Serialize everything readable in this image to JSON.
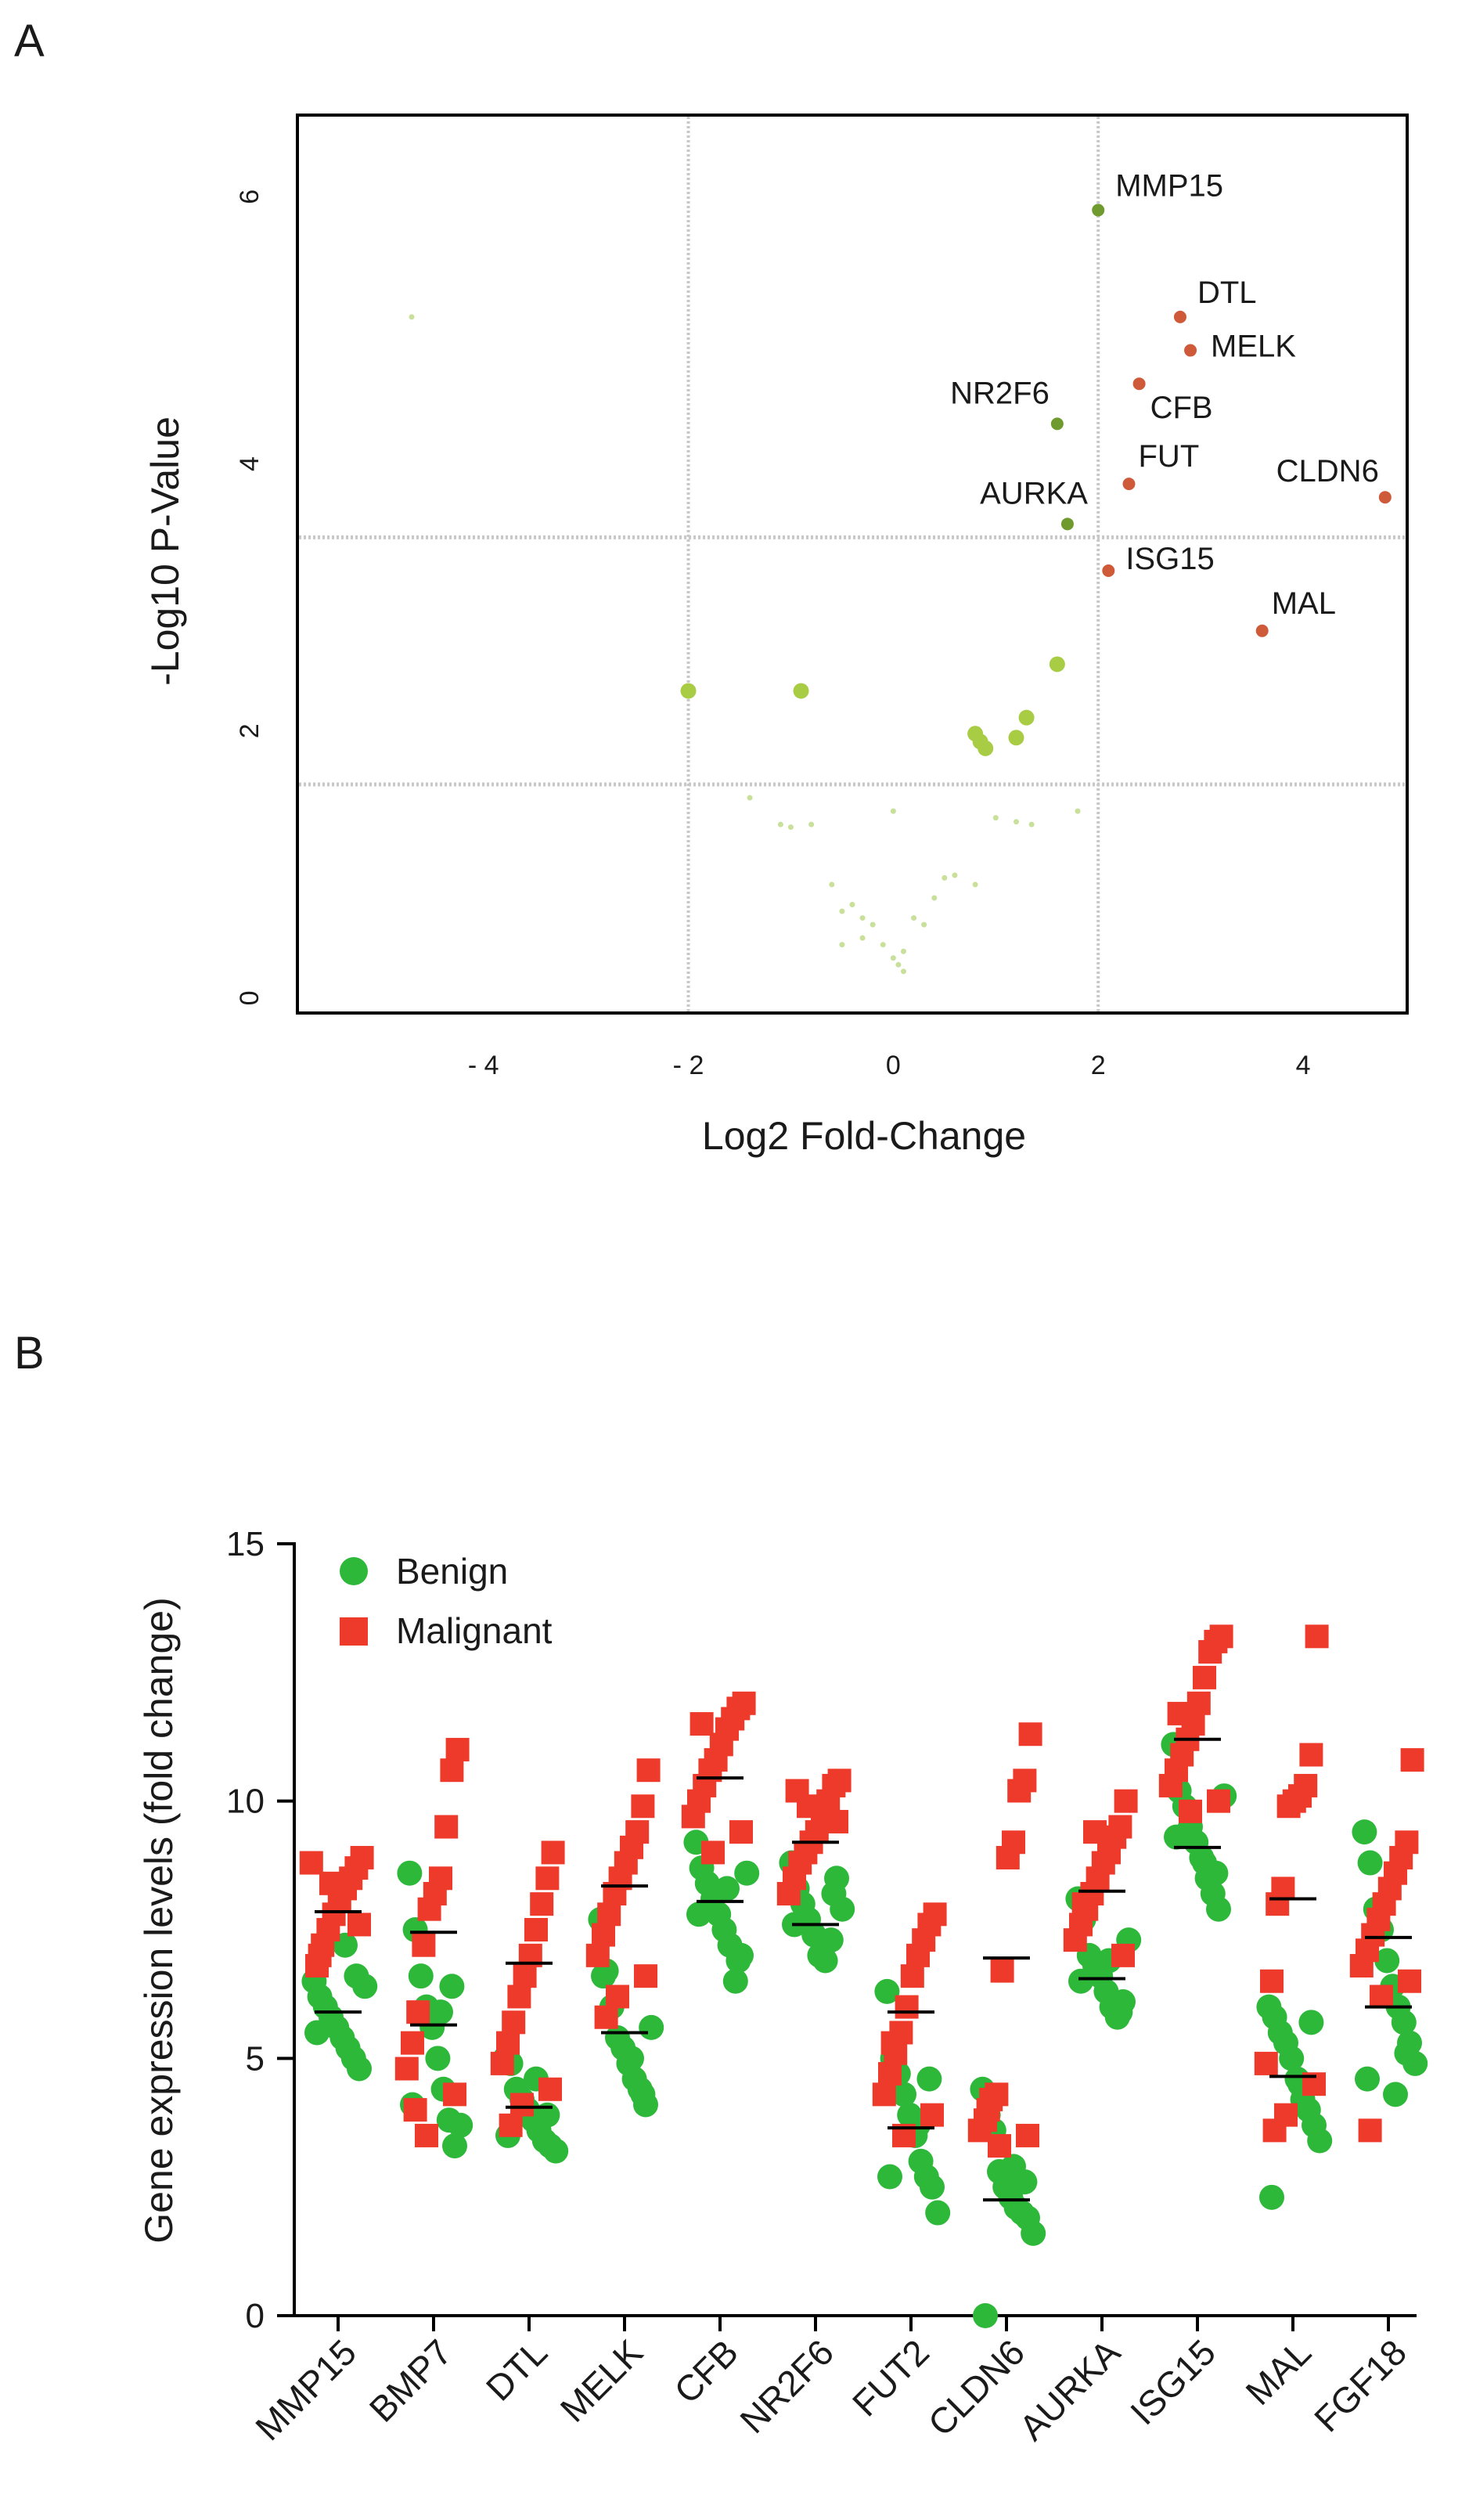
{
  "panel_labels": [
    "A",
    "B"
  ],
  "chart_data": [
    {
      "type": "scatter",
      "subtype": "volcano",
      "title": "",
      "xlabel": "Log2 Fold-Change",
      "ylabel": "-Log10 P-Value",
      "xlim": [
        -5.8,
        5.0
      ],
      "ylim": [
        -0.1,
        6.6
      ],
      "x_ticks": [
        -4,
        -2,
        0,
        2,
        4
      ],
      "x_tick_labels": [
        "- 4",
        "- 2",
        "0",
        "2",
        "4"
      ],
      "y_ticks": [
        0,
        2,
        4,
        6
      ],
      "y_tick_labels": [
        "0",
        "2",
        "4",
        "6"
      ],
      "grid_lines": {
        "x": [
          -2,
          2
        ],
        "y": [
          1.6,
          3.45
        ]
      },
      "colors": {
        "significant": "#cf5a3a",
        "moderate": "#6e9a2e",
        "light": "#a8cc44",
        "faint": "#c8e09a",
        "grid": "#c8c8c8"
      },
      "labeled_points": [
        {
          "gene": "MMP15",
          "x": 2.0,
          "y": 5.9,
          "group": "moderate"
        },
        {
          "gene": "DTL",
          "x": 2.8,
          "y": 5.1,
          "group": "significant"
        },
        {
          "gene": "MELK",
          "x": 2.9,
          "y": 4.85,
          "group": "significant"
        },
        {
          "gene": "CFB",
          "x": 2.4,
          "y": 4.6,
          "group": "significant"
        },
        {
          "gene": "NR2F6",
          "x": 1.6,
          "y": 4.3,
          "group": "moderate"
        },
        {
          "gene": "FUT",
          "x": 2.3,
          "y": 3.85,
          "group": "significant"
        },
        {
          "gene": "CLDN6",
          "x": 4.8,
          "y": 3.75,
          "group": "significant"
        },
        {
          "gene": "AURKA",
          "x": 1.7,
          "y": 3.55,
          "group": "moderate"
        },
        {
          "gene": "ISG15",
          "x": 2.1,
          "y": 3.2,
          "group": "significant"
        },
        {
          "gene": "MAL",
          "x": 3.6,
          "y": 2.75,
          "group": "significant"
        }
      ],
      "other_points": [
        {
          "x": -2.0,
          "y": 2.3,
          "group": "light"
        },
        {
          "x": -0.9,
          "y": 2.3,
          "group": "light"
        },
        {
          "x": 1.6,
          "y": 2.5,
          "group": "light"
        },
        {
          "x": 1.3,
          "y": 2.1,
          "group": "light"
        },
        {
          "x": 1.2,
          "y": 1.95,
          "group": "light"
        },
        {
          "x": 0.8,
          "y": 1.98,
          "group": "light"
        },
        {
          "x": 0.85,
          "y": 1.92,
          "group": "light"
        },
        {
          "x": 0.9,
          "y": 1.87,
          "group": "light"
        },
        {
          "x": -4.7,
          "y": 5.1,
          "group": "faint"
        },
        {
          "x": -1.4,
          "y": 1.5,
          "group": "faint"
        },
        {
          "x": -1.1,
          "y": 1.3,
          "group": "faint"
        },
        {
          "x": -1.0,
          "y": 1.28,
          "group": "faint"
        },
        {
          "x": -0.8,
          "y": 1.3,
          "group": "faint"
        },
        {
          "x": 0.0,
          "y": 1.4,
          "group": "faint"
        },
        {
          "x": 1.0,
          "y": 1.35,
          "group": "faint"
        },
        {
          "x": 1.2,
          "y": 1.32,
          "group": "faint"
        },
        {
          "x": 1.35,
          "y": 1.3,
          "group": "faint"
        },
        {
          "x": 1.8,
          "y": 1.4,
          "group": "faint"
        },
        {
          "x": -0.6,
          "y": 0.85,
          "group": "faint"
        },
        {
          "x": -0.5,
          "y": 0.65,
          "group": "faint"
        },
        {
          "x": -0.3,
          "y": 0.6,
          "group": "faint"
        },
        {
          "x": -0.2,
          "y": 0.55,
          "group": "faint"
        },
        {
          "x": -0.1,
          "y": 0.4,
          "group": "faint"
        },
        {
          "x": 0.0,
          "y": 0.3,
          "group": "faint"
        },
        {
          "x": 0.05,
          "y": 0.25,
          "group": "faint"
        },
        {
          "x": 0.1,
          "y": 0.35,
          "group": "faint"
        },
        {
          "x": -0.4,
          "y": 0.7,
          "group": "faint"
        },
        {
          "x": -0.3,
          "y": 0.45,
          "group": "faint"
        },
        {
          "x": 0.2,
          "y": 0.6,
          "group": "faint"
        },
        {
          "x": 0.3,
          "y": 0.55,
          "group": "faint"
        },
        {
          "x": 0.5,
          "y": 0.9,
          "group": "faint"
        },
        {
          "x": 0.6,
          "y": 0.92,
          "group": "faint"
        },
        {
          "x": 0.4,
          "y": 0.75,
          "group": "faint"
        },
        {
          "x": 0.8,
          "y": 0.85,
          "group": "faint"
        },
        {
          "x": -0.5,
          "y": 0.4,
          "group": "faint"
        },
        {
          "x": 0.1,
          "y": 0.2,
          "group": "faint"
        }
      ]
    },
    {
      "type": "scatter",
      "subtype": "dot-plot",
      "title": "",
      "xlabel": "",
      "ylabel": "Gene expression levels (fold change)",
      "ylim": [
        0,
        15
      ],
      "y_ticks": [
        0,
        5,
        10,
        15
      ],
      "y_tick_labels": [
        "0",
        "5",
        "10",
        "15"
      ],
      "categories": [
        "MMP15",
        "BMP7",
        "DTL",
        "MELK",
        "CFB",
        "NR2F6",
        "FUT2",
        "CLDN6",
        "AURKA",
        "ISG15",
        "MAL",
        "FGF18"
      ],
      "legend": {
        "position": "top-left",
        "entries": [
          "Benign",
          "Malignant"
        ]
      },
      "colors": {
        "Benign": "#2db83a",
        "Malignant": "#ee3a2a",
        "mean_line": "#000000"
      },
      "series": [
        {
          "name": "Benign",
          "means": [
            5.9,
            5.65,
            4.05,
            5.5,
            8.05,
            7.6,
            3.65,
            2.25,
            6.55,
            9.1,
            4.65,
            6.0
          ],
          "values": [
            [
              6.5,
              6.2,
              6.0,
              5.8,
              5.6,
              5.4,
              5.2,
              5.0,
              4.8,
              6.4,
              5.5,
              7.2,
              6.6
            ],
            [
              8.6,
              7.5,
              6.6,
              6.0,
              5.6,
              5.0,
              4.4,
              3.8,
              3.3,
              3.7,
              4.1,
              5.9,
              6.4
            ],
            [
              5.0,
              4.9,
              4.4,
              4.2,
              4.0,
              3.8,
              3.6,
              3.4,
              3.3,
              3.2,
              3.5,
              4.6,
              3.9
            ],
            [
              7.7,
              6.7,
              6.0,
              5.4,
              5.2,
              4.9,
              4.6,
              4.4,
              4.1,
              5.6,
              6.6,
              5.0,
              4.3
            ],
            [
              9.2,
              8.7,
              8.4,
              8.1,
              7.8,
              7.5,
              7.2,
              6.5,
              7.0,
              8.6,
              7.8,
              8.3,
              6.9
            ],
            [
              8.8,
              8.3,
              8.0,
              7.7,
              7.4,
              7.0,
              6.9,
              7.3,
              8.5,
              7.9,
              7.6,
              7.1,
              8.2
            ],
            [
              6.3,
              5.0,
              4.7,
              4.3,
              3.9,
              3.5,
              3.0,
              2.7,
              2.5,
              2.0,
              2.7,
              3.7,
              4.6
            ],
            [
              4.4,
              3.9,
              3.6,
              2.8,
              2.5,
              2.3,
              2.1,
              2.0,
              1.9,
              1.6,
              0.0,
              2.9,
              2.6
            ],
            [
              8.1,
              7.7,
              7.0,
              6.8,
              6.6,
              6.3,
              6.0,
              5.8,
              6.1,
              7.3,
              6.5,
              6.9,
              5.9
            ],
            [
              11.1,
              10.2,
              9.9,
              9.5,
              9.2,
              8.9,
              8.5,
              8.2,
              7.9,
              10.1,
              9.3,
              8.8,
              8.6
            ],
            [
              6.0,
              5.8,
              5.5,
              5.3,
              5.0,
              4.6,
              4.2,
              4.0,
              3.7,
              3.4,
              2.3,
              4.5,
              5.7
            ],
            [
              9.4,
              8.8,
              7.9,
              7.5,
              6.9,
              6.4,
              6.0,
              5.7,
              5.3,
              4.9,
              4.6,
              4.3,
              5.1
            ]
          ]
        },
        {
          "name": "Malignant",
          "means": [
            7.85,
            7.45,
            6.85,
            8.35,
            10.45,
            9.2,
            5.9,
            6.95,
            8.25,
            11.2,
            8.1,
            7.35
          ],
          "values": [
            [
              8.9,
              8.7,
              8.5,
              8.3,
              8.1,
              7.8,
              7.5,
              7.2,
              6.8,
              8.8,
              7.6,
              8.4,
              7.0
            ],
            [
              11.0,
              10.6,
              9.5,
              8.5,
              8.2,
              7.9,
              7.2,
              5.9,
              5.3,
              4.8,
              4.3,
              3.5,
              4.0
            ],
            [
              9.0,
              8.5,
              8.0,
              7.5,
              7.0,
              6.6,
              6.2,
              5.7,
              5.3,
              4.9,
              4.4,
              4.1,
              3.7
            ],
            [
              10.6,
              9.9,
              9.4,
              9.1,
              8.8,
              8.5,
              8.2,
              7.8,
              7.4,
              7.0,
              6.6,
              6.2,
              5.8
            ],
            [
              11.9,
              11.8,
              11.6,
              11.4,
              11.1,
              10.8,
              10.6,
              10.3,
              10.0,
              9.7,
              9.4,
              9.0,
              11.5
            ],
            [
              10.4,
              10.3,
              10.0,
              9.7,
              9.4,
              9.2,
              9.0,
              8.8,
              8.5,
              8.2,
              9.6,
              9.9,
              10.2
            ],
            [
              7.8,
              7.6,
              7.3,
              7.0,
              6.6,
              6.0,
              5.5,
              5.1,
              4.7,
              4.3,
              3.9,
              3.5,
              5.3
            ],
            [
              11.3,
              10.4,
              10.2,
              9.2,
              8.9,
              6.7,
              4.3,
              4.2,
              3.8,
              3.6,
              3.5,
              3.3,
              4.0
            ],
            [
              10.0,
              9.5,
              9.3,
              9.0,
              8.8,
              8.5,
              8.2,
              7.9,
              7.6,
              7.3,
              7.0,
              9.4,
              8.0
            ],
            [
              13.2,
              13.1,
              12.9,
              12.4,
              11.9,
              11.5,
              11.2,
              10.9,
              10.6,
              10.3,
              10.0,
              9.8,
              11.7
            ],
            [
              13.2,
              10.9,
              10.3,
              10.1,
              10.0,
              9.9,
              8.3,
              8.0,
              6.5,
              4.9,
              4.5,
              3.9,
              3.6
            ],
            [
              10.8,
              9.2,
              8.9,
              8.6,
              8.3,
              8.0,
              7.7,
              7.4,
              7.1,
              6.8,
              6.5,
              6.2,
              3.6
            ]
          ]
        }
      ]
    }
  ]
}
